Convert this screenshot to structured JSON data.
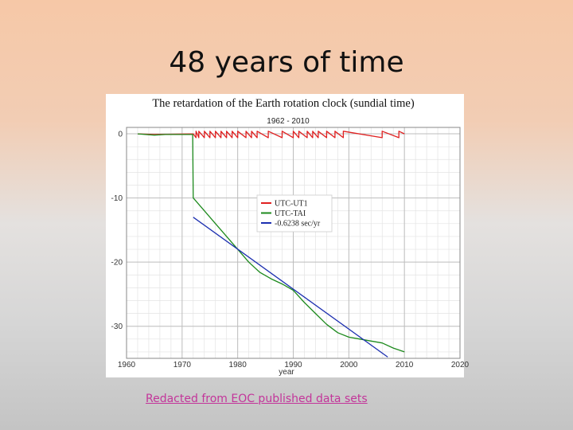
{
  "slide": {
    "title": "48 years of time",
    "caption": "Redacted from EOC published data sets"
  },
  "chart_data": {
    "type": "line",
    "title": "The retardation of the Earth rotation clock (sundial time)",
    "subtitle": "1962 - 2010",
    "xlabel": "year",
    "ylabel": "",
    "xlim": [
      1960,
      2020
    ],
    "ylim": [
      -35,
      1
    ],
    "x_ticks": [
      1960,
      1970,
      1980,
      1990,
      2000,
      2010,
      2020
    ],
    "y_ticks": [
      0,
      -10,
      -20,
      -30
    ],
    "grid": true,
    "legend_position": "center",
    "series": [
      {
        "name": "UTC-UT1",
        "color": "#e02020",
        "points": [
          [
            1962,
            0
          ],
          [
            1965,
            -0.1
          ],
          [
            1971.9,
            0
          ],
          [
            1972,
            0
          ],
          [
            1972.5,
            -0.6
          ],
          [
            1972.5,
            0.4
          ],
          [
            1973,
            -0.6
          ],
          [
            1973,
            0.4
          ],
          [
            1974,
            -0.6
          ],
          [
            1974,
            0.4
          ],
          [
            1975,
            -0.6
          ],
          [
            1975,
            0.4
          ],
          [
            1976,
            -0.6
          ],
          [
            1976,
            0.4
          ],
          [
            1977,
            -0.6
          ],
          [
            1977,
            0.4
          ],
          [
            1978,
            -0.6
          ],
          [
            1978,
            0.4
          ],
          [
            1979,
            -0.6
          ],
          [
            1979,
            0.4
          ],
          [
            1980,
            -0.6
          ],
          [
            1980,
            0.4
          ],
          [
            1981.5,
            -0.6
          ],
          [
            1981.5,
            0.4
          ],
          [
            1982.5,
            -0.6
          ],
          [
            1982.5,
            0.4
          ],
          [
            1983.5,
            -0.6
          ],
          [
            1983.5,
            0.4
          ],
          [
            1985.5,
            -0.6
          ],
          [
            1985.5,
            0.4
          ],
          [
            1988,
            -0.6
          ],
          [
            1988,
            0.4
          ],
          [
            1990,
            -0.6
          ],
          [
            1990,
            0.4
          ],
          [
            1991,
            -0.6
          ],
          [
            1991,
            0.4
          ],
          [
            1992.5,
            -0.6
          ],
          [
            1992.5,
            0.4
          ],
          [
            1993.5,
            -0.6
          ],
          [
            1993.5,
            0.4
          ],
          [
            1994.5,
            -0.6
          ],
          [
            1994.5,
            0.4
          ],
          [
            1996,
            -0.6
          ],
          [
            1996,
            0.4
          ],
          [
            1997.5,
            -0.6
          ],
          [
            1997.5,
            0.4
          ],
          [
            1999,
            -0.6
          ],
          [
            1999,
            0.4
          ],
          [
            2006,
            -0.6
          ],
          [
            2006,
            0.4
          ],
          [
            2009,
            -0.6
          ],
          [
            2009,
            0.4
          ],
          [
            2010,
            0
          ]
        ]
      },
      {
        "name": "UTC-TAI",
        "color": "#1d8a1d",
        "points": [
          [
            1962,
            0
          ],
          [
            1965,
            -0.2
          ],
          [
            1967,
            -0.1
          ],
          [
            1971.9,
            -0.1
          ],
          [
            1972,
            -10
          ],
          [
            1972.5,
            -10.5
          ],
          [
            1974,
            -12
          ],
          [
            1976,
            -14
          ],
          [
            1978,
            -16
          ],
          [
            1980,
            -18
          ],
          [
            1982,
            -20
          ],
          [
            1984,
            -21.6
          ],
          [
            1986,
            -22.6
          ],
          [
            1988,
            -23.4
          ],
          [
            1990,
            -24.4
          ],
          [
            1992,
            -26.3
          ],
          [
            1994,
            -28
          ],
          [
            1996,
            -29.7
          ],
          [
            1998,
            -31
          ],
          [
            2000,
            -31.7
          ],
          [
            2002,
            -32
          ],
          [
            2004,
            -32.3
          ],
          [
            2006,
            -32.6
          ],
          [
            2008,
            -33.4
          ],
          [
            2010,
            -34
          ]
        ]
      },
      {
        "name": "-0.6238 sec/yr",
        "color": "#1c2fb0",
        "points": [
          [
            1972,
            -13
          ],
          [
            2007,
            -34.8
          ]
        ]
      }
    ]
  }
}
